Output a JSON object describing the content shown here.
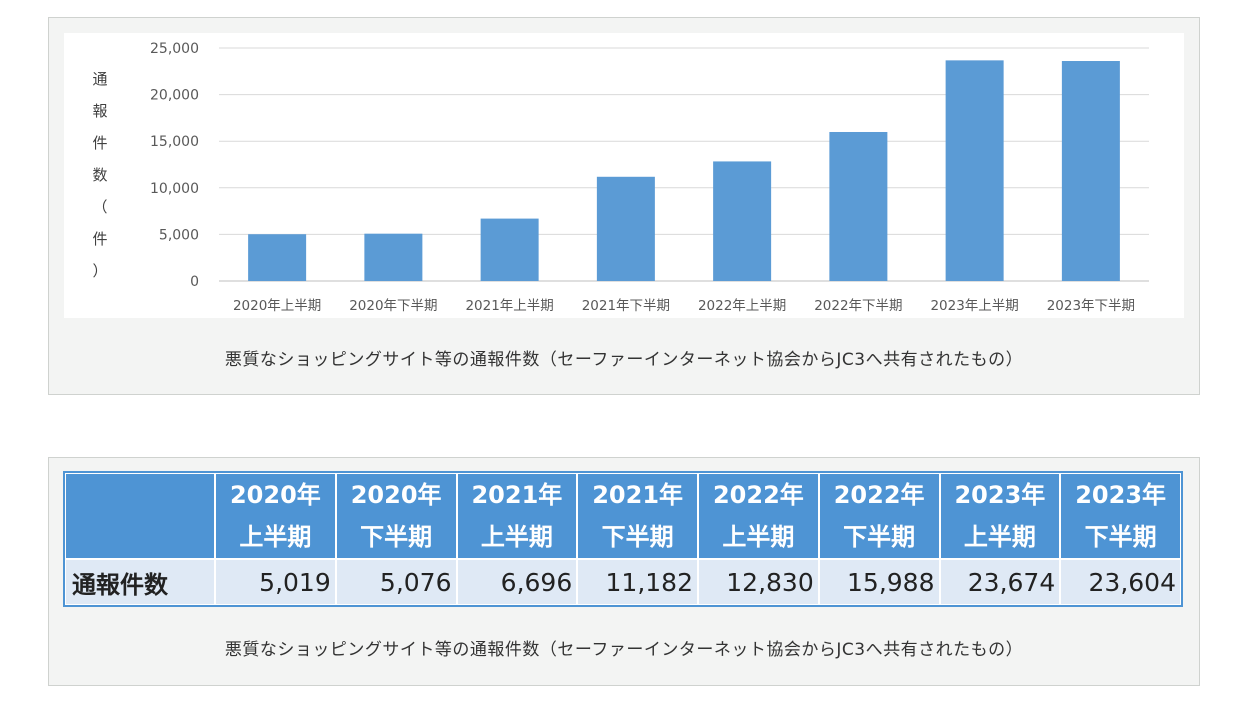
{
  "chart_data": {
    "type": "bar",
    "title": "",
    "xlabel": "",
    "ylabel": "通報件数（件）",
    "categories": [
      "2020年上半期",
      "2020年下半期",
      "2021年上半期",
      "2021年下半期",
      "2022年上半期",
      "2022年下半期",
      "2023年上半期",
      "2023年下半期"
    ],
    "values": [
      5019,
      5076,
      6696,
      11182,
      12830,
      15988,
      23674,
      23604
    ],
    "ylim": [
      0,
      25000
    ],
    "yticks": [
      "0",
      "5,000",
      "10,000",
      "15,000",
      "20,000",
      "25,000"
    ],
    "grid": true,
    "bar_color": "#5b9bd5"
  },
  "chart_caption": "悪質なショッピングサイト等の通報件数（セーファーインターネット協会からJC3へ共有されたもの）",
  "table": {
    "headers": [
      {
        "year": "2020年",
        "half": "上半期"
      },
      {
        "year": "2020年",
        "half": "下半期"
      },
      {
        "year": "2021年",
        "half": "上半期"
      },
      {
        "year": "2021年",
        "half": "下半期"
      },
      {
        "year": "2022年",
        "half": "上半期"
      },
      {
        "year": "2022年",
        "half": "下半期"
      },
      {
        "year": "2023年",
        "half": "上半期"
      },
      {
        "year": "2023年",
        "half": "下半期"
      }
    ],
    "row_label": "通報件数",
    "values": [
      "5,019",
      "5,076",
      "6,696",
      "11,182",
      "12,830",
      "15,988",
      "23,674",
      "23,604"
    ]
  },
  "table_caption": "悪質なショッピングサイト等の通報件数（セーファーインターネット協会からJC3へ共有されたもの）",
  "colors": {
    "header_bg": "#4e94d4",
    "cell_bg": "#dfe9f5",
    "panel_bg": "#f3f4f3"
  }
}
